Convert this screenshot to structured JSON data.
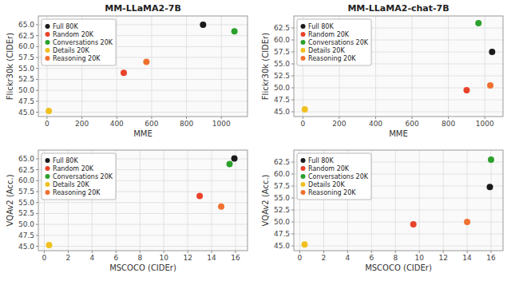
{
  "chart_data": [
    {
      "type": "scatter",
      "title": "MM-LLaMA2-7B",
      "xlabel": "MME",
      "ylabel": "Flickr30k (CIDEr)",
      "xlim": [
        -50,
        1150
      ],
      "xticks": [
        0,
        200,
        400,
        600,
        800,
        1000
      ],
      "ylim": [
        44,
        67
      ],
      "yticks": [
        {
          "value": 45.0,
          "label": "45.0"
        },
        47.5,
        {
          "value": 50.0,
          "label": "50.0"
        },
        52.5,
        {
          "value": 55.0,
          "label": "55.0"
        },
        57.5,
        {
          "value": 60.0,
          "label": "60.0"
        },
        62.5,
        {
          "value": 65.0,
          "label": "65.0"
        }
      ],
      "grid": true,
      "legend": "upper left",
      "series": [
        {
          "name": "Full 80K",
          "color": "#1a1a1a",
          "x": [
            895
          ],
          "values": [
            65.0
          ]
        },
        {
          "name": "Random 20K",
          "color": "#e8432a",
          "x": [
            440
          ],
          "values": [
            54.0
          ]
        },
        {
          "name": "Conversations 20K",
          "color": "#2ca02c",
          "x": [
            1075
          ],
          "values": [
            63.5
          ]
        },
        {
          "name": "Details 20K",
          "color": "#f0c020",
          "x": [
            10
          ],
          "values": [
            45.3
          ]
        },
        {
          "name": "Reasoning 20K",
          "color": "#f07030",
          "x": [
            570
          ],
          "values": [
            56.5
          ]
        }
      ]
    },
    {
      "type": "scatter",
      "title": "MM-LLaMA2-chat-7B",
      "xlabel": "MME",
      "ylabel": "Flickr30k (CIDEr)",
      "xlim": [
        -50,
        1100
      ],
      "xticks": [
        0,
        200,
        400,
        600,
        800,
        1000
      ],
      "ylim": [
        44,
        65
      ],
      "yticks": [
        {
          "value": 45.0,
          "label": "45.0"
        },
        47.5,
        {
          "value": 50.0,
          "label": "50.0"
        },
        52.5,
        {
          "value": 55.0,
          "label": "55.0"
        },
        57.5,
        {
          "value": 60.0,
          "label": "60.0"
        },
        62.5
      ],
      "grid": true,
      "legend": "upper left",
      "series": [
        {
          "name": "Full 80K",
          "color": "#1a1a1a",
          "x": [
            1040
          ],
          "values": [
            57.5
          ]
        },
        {
          "name": "Random 20K",
          "color": "#e8432a",
          "x": [
            900
          ],
          "values": [
            49.5
          ]
        },
        {
          "name": "Conversations 20K",
          "color": "#2ca02c",
          "x": [
            965
          ],
          "values": [
            63.5
          ]
        },
        {
          "name": "Details 20K",
          "color": "#f0c020",
          "x": [
            10
          ],
          "values": [
            45.5
          ]
        },
        {
          "name": "Reasoning 20K",
          "color": "#f07030",
          "x": [
            1030
          ],
          "values": [
            50.5
          ]
        }
      ]
    },
    {
      "type": "scatter",
      "xlabel": "MSCOCO (CIDEr)",
      "ylabel": "VQAv2 (Acc.)",
      "xlim": [
        -0.5,
        17
      ],
      "xticks": [
        0,
        2,
        4,
        6,
        8,
        10,
        12,
        14,
        16
      ],
      "ylim": [
        44,
        67
      ],
      "yticks": [
        {
          "value": 45.0,
          "label": "45.0"
        },
        47.5,
        {
          "value": 50.0,
          "label": "50.0"
        },
        52.5,
        {
          "value": 55.0,
          "label": "55.0"
        },
        57.5,
        {
          "value": 60.0,
          "label": "60.0"
        },
        62.5,
        {
          "value": 65.0,
          "label": "65.0"
        }
      ],
      "grid": true,
      "legend": "upper left",
      "series": [
        {
          "name": "Full 80K",
          "color": "#1a1a1a",
          "x": [
            15.9
          ],
          "values": [
            65.1
          ]
        },
        {
          "name": "Random 20K",
          "color": "#e8432a",
          "x": [
            13.0
          ],
          "values": [
            56.5
          ]
        },
        {
          "name": "Conversations 20K",
          "color": "#2ca02c",
          "x": [
            15.5
          ],
          "values": [
            63.8
          ]
        },
        {
          "name": "Details 20K",
          "color": "#f0c020",
          "x": [
            0.4
          ],
          "values": [
            45.3
          ]
        },
        {
          "name": "Reasoning 20K",
          "color": "#f07030",
          "x": [
            14.8
          ],
          "values": [
            54.1
          ]
        }
      ]
    },
    {
      "type": "scatter",
      "xlabel": "MSCOCO (CIDEr)",
      "ylabel": "VQAv2 (Acc.)",
      "xlim": [
        -0.5,
        17
      ],
      "xticks": [
        0,
        2,
        4,
        6,
        8,
        10,
        12,
        14,
        16
      ],
      "ylim": [
        44,
        65
      ],
      "yticks": [
        {
          "value": 45.0,
          "label": "45.0"
        },
        47.5,
        {
          "value": 50.0,
          "label": "50.0"
        },
        52.5,
        {
          "value": 55.0,
          "label": "55.0"
        },
        57.5,
        {
          "value": 60.0,
          "label": "60.0"
        },
        62.5
      ],
      "grid": true,
      "legend": "upper left",
      "series": [
        {
          "name": "Full 80K",
          "color": "#1a1a1a",
          "x": [
            15.9
          ],
          "values": [
            57.3
          ]
        },
        {
          "name": "Random 20K",
          "color": "#e8432a",
          "x": [
            9.5
          ],
          "values": [
            49.5
          ]
        },
        {
          "name": "Conversations 20K",
          "color": "#2ca02c",
          "x": [
            16.0
          ],
          "values": [
            63.0
          ]
        },
        {
          "name": "Details 20K",
          "color": "#f0c020",
          "x": [
            0.4
          ],
          "values": [
            45.3
          ]
        },
        {
          "name": "Reasoning 20K",
          "color": "#f07030",
          "x": [
            14.0
          ],
          "values": [
            50.0
          ]
        }
      ]
    }
  ]
}
